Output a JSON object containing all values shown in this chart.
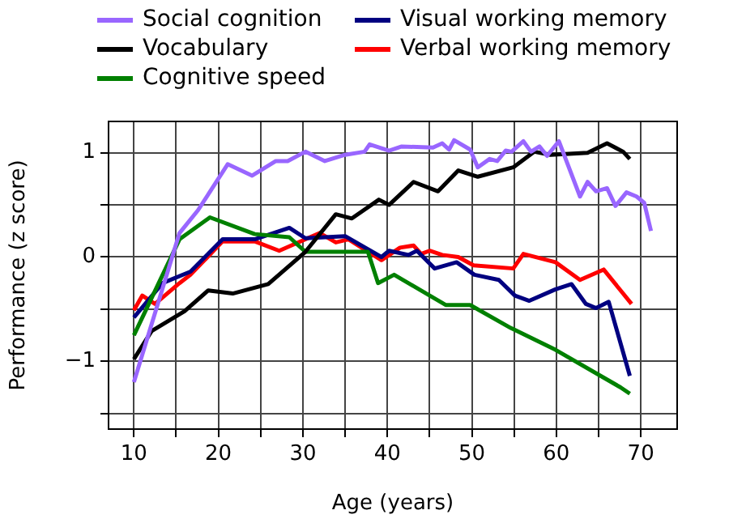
{
  "chart_data": {
    "type": "line",
    "xlabel": "Age (years)",
    "ylabel": "Performance (z score)",
    "xlim": [
      7,
      74.3
    ],
    "ylim": [
      -1.65,
      1.3
    ],
    "xticks": [
      10,
      {
        "value": 15,
        "label": null
      },
      20,
      {
        "value": 25,
        "label": null
      },
      30,
      {
        "value": 35,
        "label": null
      },
      40,
      {
        "value": 45,
        "label": null
      },
      50,
      {
        "value": 55,
        "label": null
      },
      60,
      {
        "value": 65,
        "label": null
      },
      70
    ],
    "yticks": [
      {
        "value": -1.5,
        "label": null
      },
      -1,
      {
        "value": -0.5,
        "label": null
      },
      0,
      {
        "value": 0.5,
        "label": null
      },
      1
    ],
    "grid": true,
    "legend": "top",
    "marker": "none",
    "line_style": "solid",
    "series": [
      {
        "name": "Social cognition",
        "color": "#9966ff",
        "x": [
          10,
          15.4,
          17.6,
          21.1,
          24,
          26.8,
          28.2,
          30.3,
          32.6,
          35,
          37.3,
          37.9,
          40.2,
          41.7,
          45.4,
          46.5,
          47.3,
          47.9,
          49.8,
          50.7,
          52.1,
          53,
          54,
          54.7,
          56.1,
          57,
          58,
          58.9,
          60.3,
          62.8,
          63.7,
          64.7,
          66,
          67,
          68.3,
          69.5,
          70.4,
          71.2
        ],
        "values": [
          -1.2,
          0.23,
          0.45,
          0.89,
          0.78,
          0.92,
          0.92,
          1.01,
          0.92,
          0.98,
          1.01,
          1.08,
          1.02,
          1.06,
          1.05,
          1.09,
          1.03,
          1.12,
          1.03,
          0.86,
          0.94,
          0.92,
          1.02,
          1.01,
          1.11,
          1.01,
          1.06,
          0.97,
          1.11,
          0.58,
          0.72,
          0.63,
          0.66,
          0.49,
          0.62,
          0.58,
          0.52,
          0.25
        ]
      },
      {
        "name": "Vocabulary",
        "color": "#000000",
        "x": [
          10,
          12.1,
          16,
          18.8,
          21.7,
          25.9,
          30.3,
          33.9,
          35.8,
          39,
          40.2,
          43.1,
          46,
          48.4,
          50.7,
          54.9,
          57.4,
          59.3,
          63.7,
          66,
          67.9,
          68.7
        ],
        "values": [
          -0.98,
          -0.71,
          -0.52,
          -0.32,
          -0.35,
          -0.26,
          0.05,
          0.41,
          0.37,
          0.55,
          0.5,
          0.72,
          0.63,
          0.83,
          0.77,
          0.86,
          1.01,
          0.98,
          1.0,
          1.09,
          1.01,
          0.94
        ]
      },
      {
        "name": "Cognitive speed",
        "color": "#008000",
        "x": [
          10,
          15.4,
          19,
          24.3,
          28.4,
          30.3,
          35.8,
          37.7,
          38.9,
          40.8,
          46.9,
          49.8,
          54.6,
          59.9,
          67.6,
          68.7
        ],
        "values": [
          -0.75,
          0.17,
          0.38,
          0.22,
          0.19,
          0.05,
          0.05,
          0.05,
          -0.25,
          -0.17,
          -0.46,
          -0.46,
          -0.68,
          -0.89,
          -1.25,
          -1.31
        ]
      },
      {
        "name": "Visual working memory",
        "color": "#000080",
        "x": [
          10,
          13.4,
          16.7,
          20.5,
          24.3,
          28.4,
          30.3,
          35,
          39.3,
          40.2,
          42.5,
          43.5,
          45.6,
          48.2,
          50.3,
          53.2,
          55.1,
          56.8,
          59.9,
          61.8,
          63.5,
          64.7,
          66.2,
          68.7
        ],
        "values": [
          -0.58,
          -0.25,
          -0.14,
          0.17,
          0.17,
          0.28,
          0.18,
          0.2,
          0,
          0.06,
          0.02,
          0.06,
          -0.11,
          -0.05,
          -0.17,
          -0.22,
          -0.37,
          -0.42,
          -0.31,
          -0.26,
          -0.45,
          -0.49,
          -0.43,
          -1.14
        ]
      },
      {
        "name": "Verbal working memory",
        "color": "#ff0000",
        "x": [
          10,
          11,
          12.5,
          15.4,
          16.7,
          20.5,
          24.3,
          27.2,
          32,
          33.9,
          35.4,
          39.3,
          41.5,
          43.1,
          44,
          45,
          46.5,
          48.4,
          50.2,
          54.9,
          56.1,
          59.9,
          62.8,
          65.6,
          68.9
        ],
        "values": [
          -0.51,
          -0.37,
          -0.45,
          -0.25,
          -0.17,
          0.15,
          0.15,
          0.06,
          0.23,
          0.14,
          0.17,
          -0.03,
          0.09,
          0.11,
          0.03,
          0.06,
          0.02,
          0,
          -0.08,
          -0.11,
          0.03,
          -0.05,
          -0.22,
          -0.12,
          -0.45
        ]
      }
    ]
  }
}
